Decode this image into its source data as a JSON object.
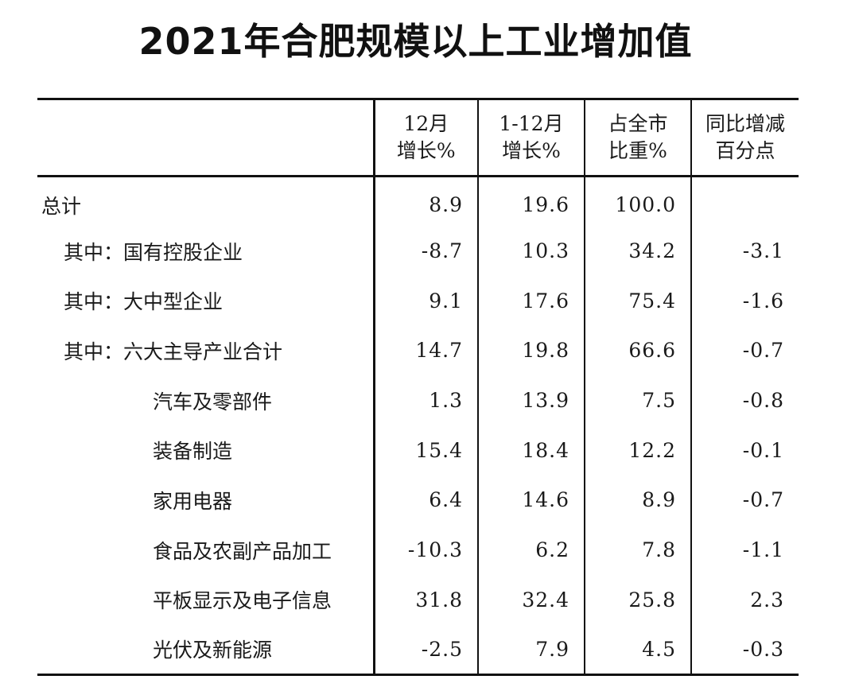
{
  "title": "2021年合肥规模以上工业增加值",
  "table": {
    "headers": [
      {
        "line1": "",
        "line2": ""
      },
      {
        "line1": "12月",
        "line2": "增长%"
      },
      {
        "line1": "1-12月",
        "line2": "增长%"
      },
      {
        "line1": "占全市",
        "line2": "比重%"
      },
      {
        "line1": "同比增减",
        "line2": "百分点"
      }
    ],
    "rows": [
      {
        "label": "总计",
        "m12": "8.9",
        "ytd": "19.6",
        "share": "100.0",
        "change": ""
      },
      {
        "label": "其中：国有控股企业",
        "m12": "-8.7",
        "ytd": "10.3",
        "share": "34.2",
        "change": "-3.1"
      },
      {
        "label": "其中：大中型企业",
        "m12": "9.1",
        "ytd": "17.6",
        "share": "75.4",
        "change": "-1.6"
      },
      {
        "label": "其中：六大主导产业合计",
        "m12": "14.7",
        "ytd": "19.8",
        "share": "66.6",
        "change": "-0.7"
      },
      {
        "label": "汽车及零部件",
        "m12": "1.3",
        "ytd": "13.9",
        "share": "7.5",
        "change": "-0.8"
      },
      {
        "label": "装备制造",
        "m12": "15.4",
        "ytd": "18.4",
        "share": "12.2",
        "change": "-0.1"
      },
      {
        "label": "家用电器",
        "m12": "6.4",
        "ytd": "14.6",
        "share": "8.9",
        "change": "-0.7"
      },
      {
        "label": "食品及农副产品加工",
        "m12": "-10.3",
        "ytd": "6.2",
        "share": "7.8",
        "change": "-1.1"
      },
      {
        "label": "平板显示及电子信息",
        "m12": "31.8",
        "ytd": "32.4",
        "share": "25.8",
        "change": "2.3"
      },
      {
        "label": "光伏及新能源",
        "m12": "-2.5",
        "ytd": "7.9",
        "share": "4.5",
        "change": "-0.3"
      }
    ]
  }
}
